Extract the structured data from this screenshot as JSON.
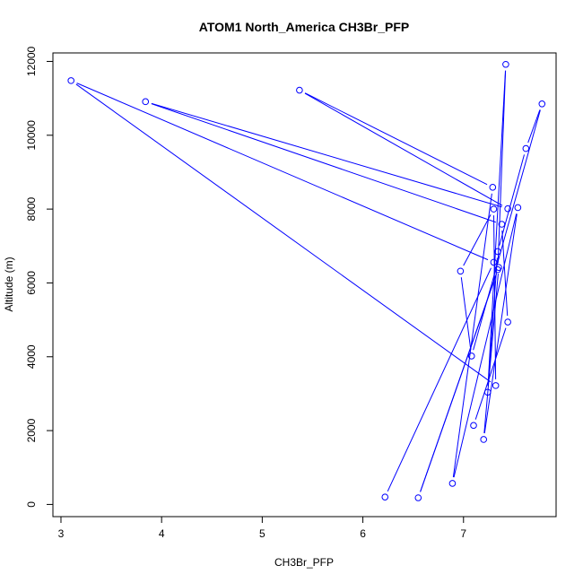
{
  "chart_data": {
    "type": "line",
    "title": "ATOM1 North_America CH3Br_PFP",
    "xlabel": "CH3Br_PFP",
    "ylabel": "Altitude (m)",
    "xlim": [
      2.92,
      7.92
    ],
    "ylim": [
      -330,
      12230
    ],
    "xticks": [
      3,
      4,
      5,
      6,
      7
    ],
    "yticks": [
      0,
      2000,
      4000,
      6000,
      8000,
      10000,
      12000
    ],
    "grid": false,
    "legend": "none",
    "series_color": "#0000ff",
    "series": [
      {
        "points": [
          {
            "x": 6.22,
            "y": 200
          },
          {
            "x": 7.3,
            "y": 6560
          },
          {
            "x": 3.1,
            "y": 11480
          },
          {
            "x": 7.32,
            "y": 3220
          },
          {
            "x": 7.3,
            "y": 8000
          },
          {
            "x": 6.97,
            "y": 6320
          },
          {
            "x": 7.08,
            "y": 4020
          },
          {
            "x": 7.78,
            "y": 10850
          },
          {
            "x": 7.62,
            "y": 9640
          },
          {
            "x": 7.34,
            "y": 6850
          },
          {
            "x": 7.24,
            "y": 3040
          },
          {
            "x": 7.42,
            "y": 11920
          },
          {
            "x": 7.34,
            "y": 6360
          },
          {
            "x": 6.55,
            "y": 180
          },
          {
            "x": 7.35,
            "y": 6420
          },
          {
            "x": 7.2,
            "y": 1760
          },
          {
            "x": 7.54,
            "y": 8040
          },
          {
            "x": 6.89,
            "y": 570
          },
          {
            "x": 7.29,
            "y": 8590
          },
          {
            "x": 5.37,
            "y": 11220
          },
          {
            "x": 7.44,
            "y": 8010
          },
          {
            "x": 3.84,
            "y": 10910
          },
          {
            "x": 7.38,
            "y": 7590
          },
          {
            "x": 7.44,
            "y": 4940
          },
          {
            "x": 7.1,
            "y": 2140
          }
        ]
      }
    ]
  }
}
